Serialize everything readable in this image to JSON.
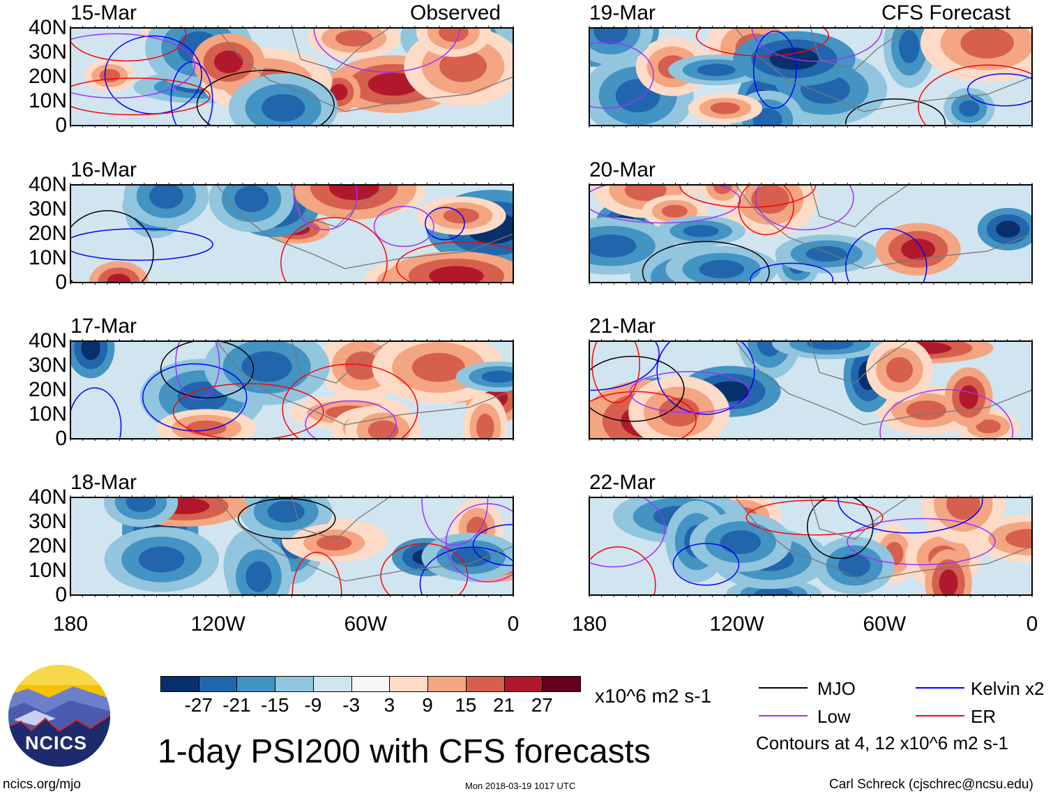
{
  "chart_data": {
    "type": "heatmap",
    "title": "1-day PSI200 with CFS forecasts",
    "left_column_label": "Observed",
    "right_column_label": "CFS Forecast",
    "panels": [
      {
        "date": "15-Mar",
        "column": "left"
      },
      {
        "date": "16-Mar",
        "column": "left"
      },
      {
        "date": "17-Mar",
        "column": "left"
      },
      {
        "date": "18-Mar",
        "column": "left"
      },
      {
        "date": "19-Mar",
        "column": "right"
      },
      {
        "date": "20-Mar",
        "column": "right"
      },
      {
        "date": "21-Mar",
        "column": "right"
      },
      {
        "date": "22-Mar",
        "column": "right"
      }
    ],
    "y_ticks": [
      "40N",
      "30N",
      "20N",
      "10N",
      "0"
    ],
    "x_ticks": [
      "180",
      "120W",
      "60W",
      "0"
    ],
    "xlim": [
      -180,
      0
    ],
    "ylim": [
      0,
      40
    ],
    "colorbar": {
      "levels": [
        "-27",
        "-21",
        "-15",
        "-9",
        "-3",
        "3",
        "9",
        "15",
        "21",
        "27"
      ],
      "colors": [
        "#08306b",
        "#2166ac",
        "#4393c3",
        "#92c5de",
        "#d1e5f0",
        "#f7f7f7",
        "#fddbc7",
        "#f4a582",
        "#d6604d",
        "#b2182b",
        "#67001f"
      ],
      "units": "x10^6 m2 s-1"
    },
    "legend": [
      {
        "label": "MJO",
        "color": "#000000"
      },
      {
        "label": "Kelvin x2",
        "color": "#0000ff"
      },
      {
        "label": "Low",
        "color": "#9b30ff"
      },
      {
        "label": "ER",
        "color": "#ff0000"
      }
    ],
    "contour_note": "Contours at 4, 12 x10^6 m2 s-1"
  },
  "footer": {
    "logo_text": "NCICS",
    "url": "ncics.org/mjo",
    "timestamp": "Mon 2018-03-19 1017 UTC",
    "author": "Carl Schreck (cjschrec@ncsu.edu)"
  }
}
